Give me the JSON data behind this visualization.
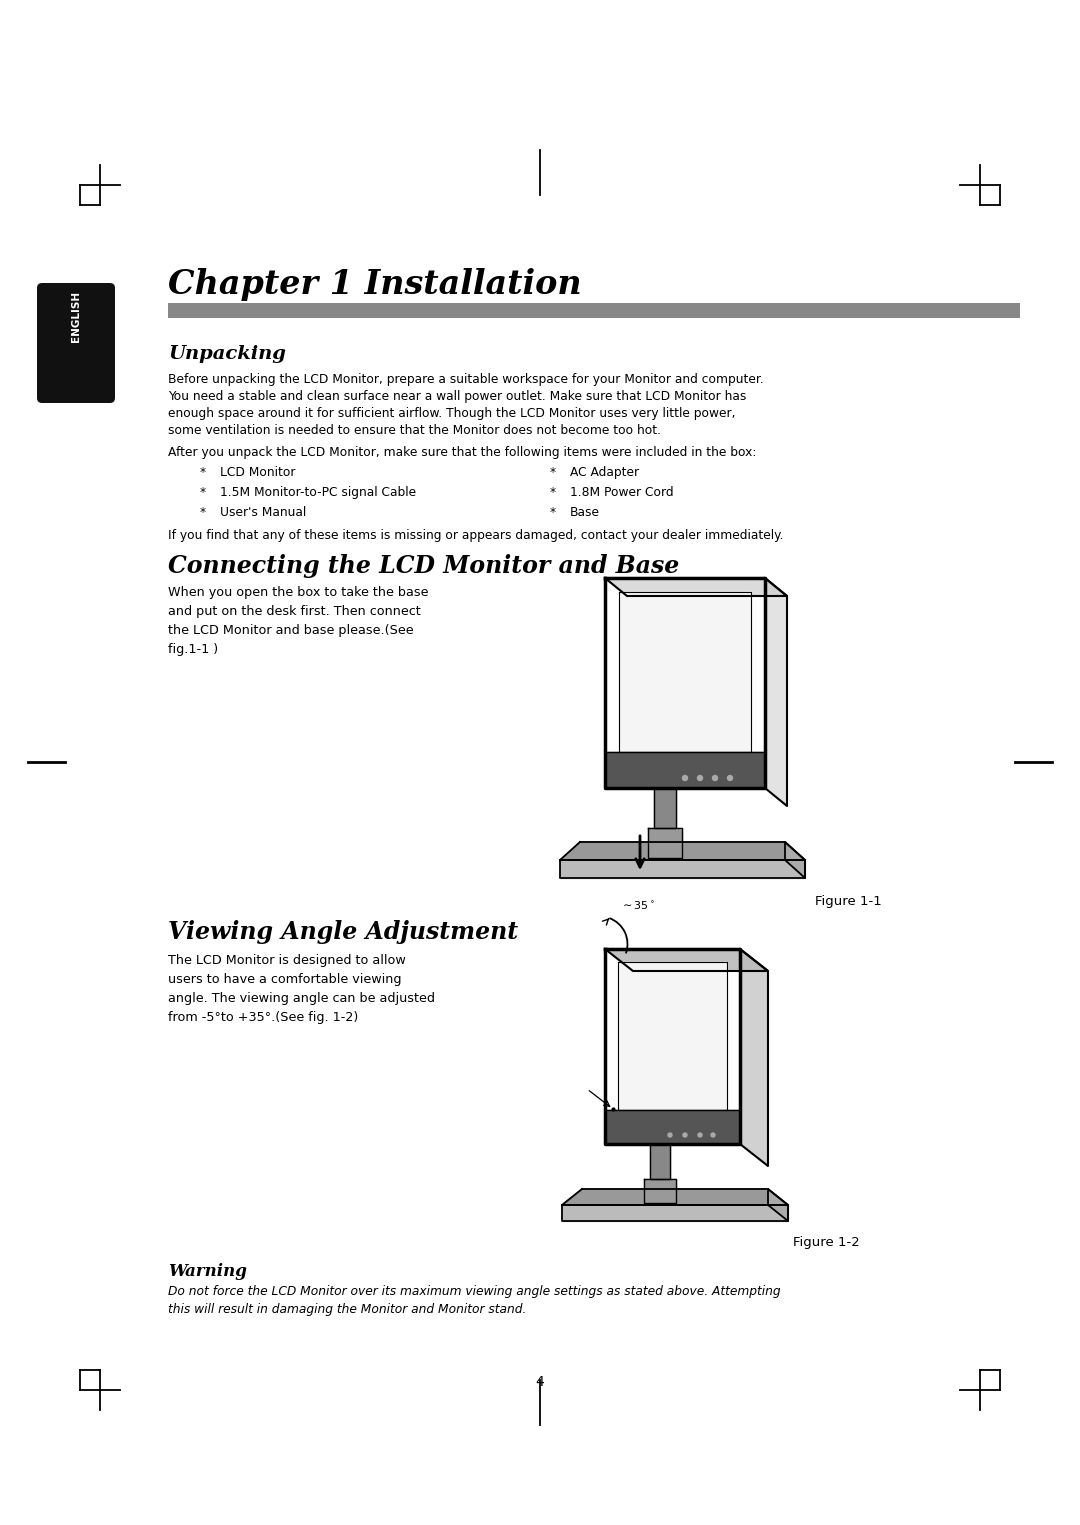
{
  "bg_color": "#ffffff",
  "page_number": "4",
  "chapter_title": "Chapter 1 Installation",
  "section1_title": "Unpacking",
  "section1_body1_lines": [
    "Before unpacking the LCD Monitor, prepare a suitable workspace for your Monitor and computer.",
    "You need a stable and clean surface near a wall power outlet. Make sure that LCD Monitor has",
    "enough space around it for sufficient airflow. Though the LCD Monitor uses very little power,",
    "some ventilation is needed to ensure that the Monitor does not become too hot."
  ],
  "section1_body2": "After you unpack the LCD Monitor, make sure that the following items were included in the box:",
  "items_col1": [
    "LCD Monitor",
    "1.5M Monitor-to-PC signal Cable",
    "User's Manual"
  ],
  "items_col2": [
    "AC Adapter",
    "1.8M Power Cord",
    "Base"
  ],
  "section1_body3": "If you find that any of these items is missing or appears damaged, contact your dealer immediately.",
  "section2_title": "Connecting the LCD Monitor and Base",
  "section2_body_lines": [
    "When you open the box to take the base",
    "and put on the desk first. Then connect",
    "the LCD Monitor and base please.(See",
    "fig.1-1 )"
  ],
  "figure1_caption": "Figure 1-1",
  "section3_title": "Viewing Angle Adjustment",
  "section3_body_lines": [
    "The LCD Monitor is designed to allow",
    "users to have a comfortable viewing",
    "angle. The viewing angle can be adjusted",
    "from -5°to +35°.(See fig. 1-2)"
  ],
  "figure2_caption": "Figure 1-2",
  "warning_title": "Warning",
  "warning_body_lines": [
    "Do not force the LCD Monitor over its maximum viewing angle settings as stated above. Attempting",
    "this will result in damaging the Monitor and Monitor stand."
  ],
  "english_label": "ENGLISH",
  "english_box_color": "#111111",
  "header_bar_color": "#888888"
}
